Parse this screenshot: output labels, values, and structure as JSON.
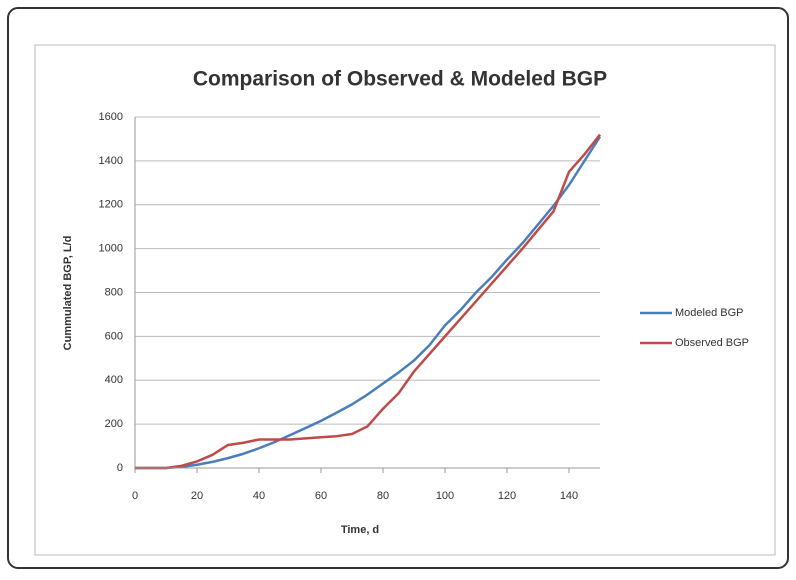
{
  "chart_data": {
    "type": "line",
    "title": "Comparison of Observed & Modeled BGP",
    "x_label": "Time, d",
    "y_label": "Cummulated BGP, L/d",
    "x": [
      0,
      5,
      10,
      15,
      20,
      25,
      30,
      35,
      40,
      45,
      50,
      55,
      60,
      65,
      70,
      75,
      80,
      85,
      90,
      95,
      100,
      105,
      110,
      115,
      120,
      125,
      130,
      135,
      140,
      145,
      150
    ],
    "series": [
      {
        "name": "Modeled BGP",
        "color": "#4a7ebb",
        "values": [
          0,
          0,
          0,
          5,
          15,
          28,
          45,
          65,
          90,
          118,
          150,
          182,
          215,
          252,
          290,
          335,
          385,
          435,
          490,
          560,
          650,
          720,
          800,
          870,
          950,
          1025,
          1110,
          1195,
          1290,
          1400,
          1510
        ]
      },
      {
        "name": "Observed BGP",
        "color": "#be4b48",
        "values": [
          0,
          0,
          0,
          10,
          30,
          60,
          105,
          115,
          130,
          130,
          130,
          135,
          140,
          145,
          155,
          190,
          270,
          340,
          440,
          520,
          600,
          680,
          760,
          840,
          920,
          1000,
          1085,
          1170,
          1350,
          1430,
          1520
        ]
      }
    ],
    "xlim": [
      0,
      150
    ],
    "xticks": [
      0,
      20,
      40,
      60,
      80,
      100,
      120,
      140
    ],
    "ylim": [
      0,
      1600
    ],
    "yticks": [
      0,
      200,
      400,
      600,
      800,
      1000,
      1200,
      1400,
      1600
    ],
    "grid": true,
    "legend": "right"
  }
}
